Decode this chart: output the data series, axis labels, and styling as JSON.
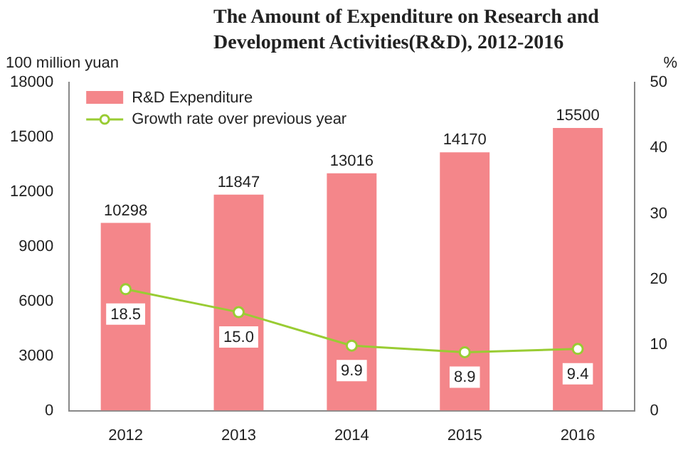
{
  "chart_data": {
    "type": "bar",
    "title": "The Amount of Expenditure on Research and Development Activities(R&D), 2012-2016",
    "ylabel": "100 million yuan",
    "y2label": "%",
    "categories": [
      "2012",
      "2013",
      "2014",
      "2015",
      "2016"
    ],
    "series": [
      {
        "name": "R&D Expenditure",
        "color": "#f4868a",
        "values": [
          10298,
          11847,
          13016,
          14170,
          15500
        ]
      },
      {
        "name": "Growth rate over previous year",
        "type": "line",
        "axis": "y2",
        "color": "#99cc33",
        "values": [
          18.5,
          15.0,
          9.9,
          8.9,
          9.4
        ],
        "value_labels": [
          "18.5",
          "15.0",
          "9.9",
          "8.9",
          "9.4"
        ]
      }
    ],
    "ylim": [
      0,
      18000
    ],
    "yticks": [
      0,
      3000,
      6000,
      9000,
      12000,
      15000,
      18000
    ],
    "y2lim": [
      0,
      50
    ],
    "y2ticks": [
      0,
      10,
      20,
      30,
      40,
      50
    ],
    "data_labels": true,
    "legend": "top left",
    "marker": "circle",
    "grid": false
  }
}
